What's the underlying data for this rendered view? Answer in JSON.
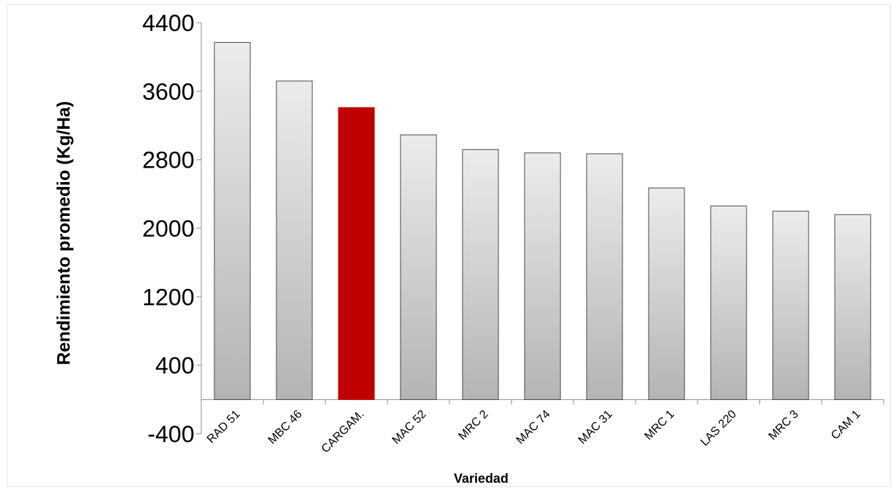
{
  "chart_data": {
    "type": "bar",
    "title": "",
    "xlabel": "Variedad",
    "ylabel": "Rendimiento promedio (Kg/Ha)",
    "ylim": [
      -400,
      4400
    ],
    "yticks": [
      -400,
      400,
      1200,
      2000,
      2800,
      3600,
      4400
    ],
    "categories": [
      "RAD 51",
      "MBC 46",
      "CARGAM.",
      "MAC 52",
      "MRC 2",
      "MAC 74",
      "MAC 31",
      "MRC 1",
      "LAS 220",
      "MRC 3",
      "CAM 1"
    ],
    "values": [
      4170,
      3720,
      3410,
      3090,
      2920,
      2880,
      2870,
      2470,
      2260,
      2200,
      2160
    ],
    "highlight_index": 2,
    "colors": {
      "bar": "#d0d0d0",
      "highlight": "#c00000",
      "axis": "#868686",
      "bar_stroke": "#404040"
    },
    "grid": false,
    "legend": "none"
  }
}
